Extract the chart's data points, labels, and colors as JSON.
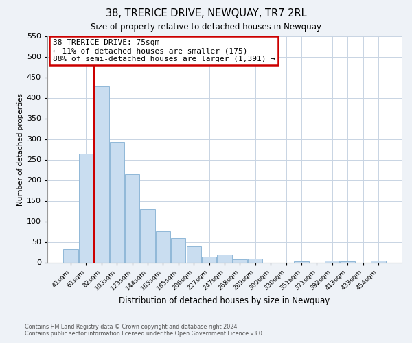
{
  "title": "38, TRERICE DRIVE, NEWQUAY, TR7 2RL",
  "subtitle": "Size of property relative to detached houses in Newquay",
  "xlabel": "Distribution of detached houses by size in Newquay",
  "ylabel": "Number of detached properties",
  "bar_labels": [
    "41sqm",
    "61sqm",
    "82sqm",
    "103sqm",
    "123sqm",
    "144sqm",
    "165sqm",
    "185sqm",
    "206sqm",
    "227sqm",
    "247sqm",
    "268sqm",
    "289sqm",
    "309sqm",
    "330sqm",
    "351sqm",
    "371sqm",
    "392sqm",
    "413sqm",
    "433sqm",
    "454sqm"
  ],
  "bar_values": [
    32,
    265,
    428,
    292,
    214,
    129,
    76,
    59,
    40,
    15,
    20,
    8,
    10,
    0,
    0,
    2,
    0,
    5,
    3,
    0,
    5
  ],
  "bar_color": "#c9ddf0",
  "bar_edgecolor": "#90b8d8",
  "ylim": [
    0,
    550
  ],
  "yticks": [
    0,
    50,
    100,
    150,
    200,
    250,
    300,
    350,
    400,
    450,
    500,
    550
  ],
  "vline_color": "#cc0000",
  "annotation_title": "38 TRERICE DRIVE: 75sqm",
  "annotation_line1": "← 11% of detached houses are smaller (175)",
  "annotation_line2": "88% of semi-detached houses are larger (1,391) →",
  "annotation_box_edgecolor": "#cc0000",
  "footer_line1": "Contains HM Land Registry data © Crown copyright and database right 2024.",
  "footer_line2": "Contains public sector information licensed under the Open Government Licence v3.0.",
  "bg_color": "#eef2f7",
  "plot_bg_color": "#ffffff",
  "grid_color": "#c8d4e3"
}
